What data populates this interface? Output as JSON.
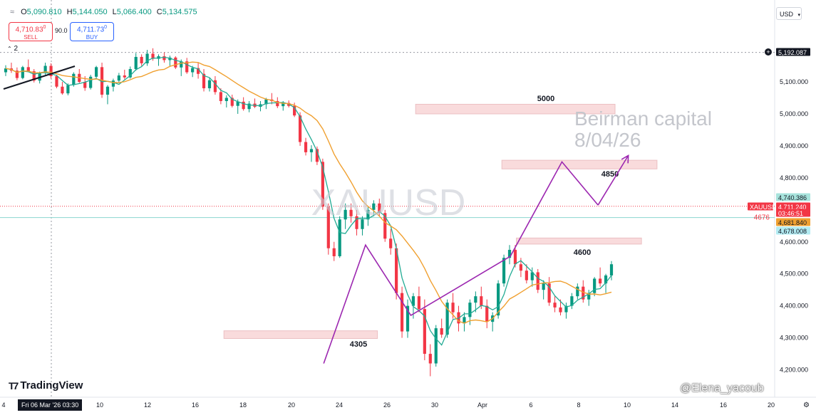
{
  "header": {
    "ohlc": [
      {
        "label": "O",
        "value": "5,090.810"
      },
      {
        "label": "H",
        "value": "5,144.050"
      },
      {
        "label": "L",
        "value": "5,066.400"
      },
      {
        "label": "C",
        "value": "5,134.575"
      }
    ],
    "sell": {
      "price_main": "4,710.83",
      "price_sup": "0",
      "label": "SELL"
    },
    "buy": {
      "price_main": "4,711.73",
      "price_sup": "0",
      "label": "BUY"
    },
    "spread": "90.0",
    "currency": "USD",
    "layer_count": "2"
  },
  "branding": {
    "tradingview": "TradingView",
    "author": "@Elena_yacoub"
  },
  "date_cursor": "Fri 06 Mar '26   03:30",
  "colors": {
    "up": "#089981",
    "down": "#f23645",
    "ma_fast": "#22ab94",
    "ma_slow": "#f0a030",
    "pattern": "#9c27b0",
    "zone": "#f8d5d7"
  },
  "chart_data": {
    "type": "candlestick",
    "symbol_watermark": "XAUUSD",
    "annotation_text": [
      "Beirman capital",
      "8/04/26"
    ],
    "y_ticks": [
      "5,100.000",
      "5,000.000",
      "4,900.000",
      "4,800.000",
      "4,700.000",
      "4,600.000",
      "4,500.000",
      "4,400.000",
      "4,300.000",
      "4,200.000"
    ],
    "y_tick_values": [
      5100,
      5000,
      4900,
      4800,
      4700,
      4600,
      4500,
      4400,
      4300,
      4200
    ],
    "x_ticks": [
      "4",
      "10",
      "12",
      "16",
      "18",
      "20",
      "24",
      "26",
      "30",
      "Apr",
      "6",
      "8",
      "10",
      "14",
      "16",
      "20"
    ],
    "x_tick_days": [
      -4,
      10,
      12,
      16,
      18,
      20,
      24,
      26,
      30,
      32,
      36,
      38,
      40,
      44,
      46,
      50
    ],
    "price_labels": [
      {
        "text": "5,192.087",
        "value": 5192.087,
        "style": "dark"
      },
      {
        "text": "4,740.386",
        "value": 4740.386,
        "style": "ma_fast"
      },
      {
        "text": "XAUUSD",
        "value": 4711.24,
        "style": "symbol"
      },
      {
        "text": "4,711.240",
        "value": 4711.24,
        "style": "red"
      },
      {
        "text": "03:46:51",
        "value": 4696,
        "style": "red"
      },
      {
        "text": "4,681.840",
        "value": 4681.84,
        "style": "ma_slow"
      },
      {
        "text": "4,678.008",
        "value": 4678.008,
        "style": "cyan"
      }
    ],
    "horizontal_line_label": "4676",
    "horizontal_line_value": 4676,
    "zones": [
      {
        "label": "5000",
        "day_from": 28.4,
        "day_to": 39.5,
        "y_from": 5000,
        "y_to": 5030
      },
      {
        "label": "4850",
        "day_from": 33.6,
        "day_to": 42.5,
        "y_from": 4828,
        "y_to": 4855
      },
      {
        "label": "4600",
        "day_from": 34.8,
        "day_to": 41.2,
        "y_from": 4593,
        "y_to": 4612
      },
      {
        "label": "4305",
        "day_from": 17.2,
        "day_to": 25.6,
        "y_from": 4298,
        "y_to": 4322
      }
    ],
    "pattern_path": [
      [
        22.7,
        4220
      ],
      [
        25.1,
        4590
      ],
      [
        28.0,
        4370
      ],
      [
        34.3,
        4555
      ],
      [
        37.3,
        4850
      ],
      [
        38.8,
        4715
      ]
    ],
    "projection_arrow": [
      [
        38.8,
        4715
      ],
      [
        40.1,
        4870
      ]
    ],
    "trendline": [
      [
        -4,
        4540
      ],
      [
        6,
        4620
      ]
    ],
    "candles": [
      [
        -3.5,
        5130,
        5152,
        5118,
        5142
      ],
      [
        -3.0,
        5142,
        5160,
        5128,
        5135
      ],
      [
        -2.5,
        5135,
        5145,
        5105,
        5112
      ],
      [
        -2.0,
        5112,
        5150,
        5108,
        5146
      ],
      [
        -1.5,
        5146,
        5170,
        5130,
        5133
      ],
      [
        -1.0,
        5133,
        5140,
        5098,
        5104
      ],
      [
        -0.5,
        5104,
        5132,
        5095,
        5128
      ],
      [
        0.0,
        5128,
        5160,
        5122,
        5150
      ],
      [
        0.5,
        5150,
        5158,
        5110,
        5118
      ],
      [
        1.0,
        5118,
        5122,
        5080,
        5085
      ],
      [
        1.5,
        5085,
        5100,
        5060,
        5064
      ],
      [
        2.0,
        5064,
        5095,
        5058,
        5090
      ],
      [
        2.5,
        5090,
        5130,
        5085,
        5125
      ],
      [
        3.0,
        5125,
        5140,
        5096,
        5100
      ],
      [
        3.5,
        5100,
        5118,
        5072,
        5081
      ],
      [
        4.0,
        5081,
        5122,
        5076,
        5116
      ],
      [
        4.5,
        5116,
        5150,
        5110,
        5146
      ],
      [
        5.0,
        5146,
        5160,
        5050,
        5060
      ],
      [
        5.5,
        5060,
        5090,
        5030,
        5085
      ],
      [
        6.0,
        5085,
        5110,
        5070,
        5104
      ],
      [
        6.5,
        5104,
        5128,
        5096,
        5120
      ],
      [
        7.0,
        5120,
        5138,
        5108,
        5114
      ],
      [
        7.5,
        5114,
        5148,
        5110,
        5140
      ],
      [
        8.0,
        5140,
        5190,
        5135,
        5178
      ],
      [
        8.5,
        5178,
        5186,
        5150,
        5158
      ],
      [
        9.0,
        5158,
        5200,
        5150,
        5188
      ],
      [
        9.5,
        5188,
        5205,
        5166,
        5172
      ],
      [
        10.0,
        5172,
        5186,
        5150,
        5180
      ],
      [
        10.5,
        5180,
        5192,
        5160,
        5168
      ],
      [
        11.0,
        5168,
        5182,
        5150,
        5176
      ],
      [
        11.5,
        5176,
        5180,
        5140,
        5145
      ],
      [
        12.0,
        5145,
        5170,
        5118,
        5164
      ],
      [
        12.5,
        5164,
        5175,
        5125,
        5130
      ],
      [
        13.0,
        5130,
        5150,
        5115,
        5143
      ],
      [
        13.5,
        5143,
        5160,
        5110,
        5125
      ],
      [
        14.0,
        5125,
        5140,
        5070,
        5080
      ],
      [
        14.5,
        5080,
        5112,
        5070,
        5105
      ],
      [
        15.0,
        5105,
        5118,
        5060,
        5068
      ],
      [
        15.5,
        5068,
        5080,
        5030,
        5040
      ],
      [
        16.0,
        5040,
        5058,
        5020,
        5050
      ],
      [
        16.5,
        5050,
        5060,
        5020,
        5025
      ],
      [
        17.0,
        5025,
        5045,
        5000,
        5038
      ],
      [
        17.5,
        5038,
        5052,
        5010,
        5015
      ],
      [
        18.0,
        5015,
        5040,
        5005,
        5032
      ],
      [
        18.5,
        5032,
        5048,
        5018,
        5022
      ],
      [
        19.0,
        5022,
        5040,
        5008,
        5030
      ],
      [
        19.5,
        5030,
        5050,
        5015,
        5045
      ],
      [
        20.0,
        5045,
        5065,
        5030,
        5040
      ],
      [
        20.5,
        5040,
        5052,
        5018,
        5024
      ],
      [
        21.0,
        5024,
        5040,
        5010,
        5034
      ],
      [
        21.5,
        5034,
        5042,
        5020,
        5025
      ],
      [
        22.0,
        5025,
        5035,
        4990,
        4995
      ],
      [
        22.5,
        4995,
        5005,
        4900,
        4912
      ],
      [
        23.0,
        4912,
        4925,
        4870,
        4880
      ],
      [
        23.5,
        4880,
        4902,
        4850,
        4890
      ],
      [
        24.0,
        4890,
        4898,
        4840,
        4850
      ],
      [
        24.5,
        4850,
        4860,
        4700,
        4710
      ],
      [
        25.0,
        4710,
        4720,
        4560,
        4580
      ],
      [
        25.5,
        4580,
        4600,
        4540,
        4555
      ],
      [
        26.0,
        4555,
        4680,
        4550,
        4670
      ],
      [
        26.5,
        4670,
        4720,
        4640,
        4700
      ],
      [
        27.0,
        4700,
        4720,
        4660,
        4680
      ],
      [
        27.5,
        4680,
        4700,
        4620,
        4640
      ],
      [
        28.0,
        4640,
        4680,
        4620,
        4670
      ],
      [
        28.5,
        4670,
        4710,
        4650,
        4700
      ],
      [
        29.0,
        4700,
        4730,
        4680,
        4720
      ],
      [
        29.5,
        4720,
        4735,
        4680,
        4690
      ],
      [
        30.0,
        4690,
        4700,
        4600,
        4610
      ],
      [
        30.5,
        4610,
        4640,
        4560,
        4580
      ],
      [
        31.0,
        4580,
        4595,
        4420,
        4440
      ],
      [
        31.5,
        4440,
        4460,
        4300,
        4320
      ],
      [
        32.0,
        4320,
        4420,
        4300,
        4400
      ],
      [
        32.5,
        4400,
        4440,
        4360,
        4430
      ],
      [
        33.0,
        4430,
        4460,
        4380,
        4390
      ],
      [
        33.5,
        4390,
        4420,
        4230,
        4250
      ],
      [
        34.0,
        4250,
        4280,
        4180,
        4220
      ],
      [
        34.5,
        4220,
        4340,
        4210,
        4330
      ],
      [
        35.0,
        4330,
        4360,
        4300,
        4310
      ],
      [
        35.5,
        4310,
        4420,
        4300,
        4410
      ],
      [
        36.0,
        4410,
        4440,
        4360,
        4380
      ],
      [
        36.5,
        4380,
        4400,
        4320,
        4345
      ],
      [
        37.0,
        4345,
        4380,
        4320,
        4365
      ],
      [
        37.5,
        4365,
        4420,
        4340,
        4410
      ],
      [
        38.0,
        4410,
        4445,
        4380,
        4430
      ],
      [
        38.5,
        4430,
        4460,
        4390,
        4400
      ],
      [
        39.0,
        4400,
        4420,
        4330,
        4350
      ],
      [
        39.5,
        4350,
        4380,
        4320,
        4370
      ],
      [
        40.0,
        4370,
        4480,
        4360,
        4470
      ],
      [
        40.5,
        4470,
        4560,
        4460,
        4550
      ],
      [
        41.0,
        4550,
        4590,
        4530,
        4575
      ],
      [
        41.5,
        4575,
        4590,
        4520,
        4530
      ],
      [
        42.0,
        4530,
        4550,
        4490,
        4510
      ],
      [
        42.5,
        4510,
        4530,
        4470,
        4480
      ],
      [
        43.0,
        4480,
        4520,
        4460,
        4505
      ],
      [
        43.5,
        4505,
        4515,
        4440,
        4450
      ],
      [
        44.0,
        4450,
        4480,
        4420,
        4470
      ],
      [
        44.5,
        4470,
        4490,
        4400,
        4410
      ],
      [
        45.0,
        4410,
        4430,
        4380,
        4395
      ],
      [
        45.5,
        4395,
        4420,
        4370,
        4380
      ],
      [
        46.0,
        4380,
        4410,
        4360,
        4400
      ],
      [
        46.5,
        4400,
        4440,
        4390,
        4430
      ],
      [
        47.0,
        4430,
        4470,
        4420,
        4460
      ],
      [
        47.5,
        4460,
        4480,
        4410,
        4420
      ],
      [
        48.0,
        4420,
        4450,
        4400,
        4440
      ],
      [
        48.5,
        4440,
        4490,
        4430,
        4485
      ],
      [
        49.0,
        4485,
        4520,
        4460,
        4470
      ],
      [
        49.5,
        4470,
        4500,
        4440,
        4495
      ],
      [
        50.0,
        4495,
        4540,
        4480,
        4530
      ]
    ]
  }
}
